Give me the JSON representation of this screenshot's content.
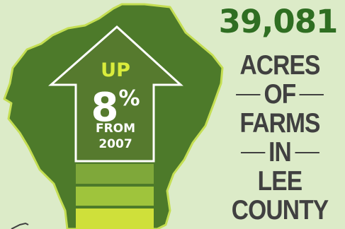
{
  "colors": {
    "background": "#dcebc8",
    "county_fill": "#4d7a2a",
    "county_outline": "#c4de52",
    "arrow_fill": "#567a2e",
    "bar_top": "#7fa83a",
    "bar_middle": "#9fc43c",
    "bar_bottom": "#cfe03a",
    "headline_green": "#2f6e22",
    "text_dark": "#404040",
    "accent_yellow": "#d9ec3c"
  },
  "badge": {
    "direction": "UP",
    "percent": "8",
    "percent_symbol": "%",
    "from_text": "FROM",
    "year": "2007"
  },
  "headline": {
    "number": "39,081",
    "lines": [
      {
        "text": "ACRES",
        "ruled": false
      },
      {
        "text": "OF",
        "ruled": true
      },
      {
        "text": "FARMS",
        "ruled": false
      },
      {
        "text": "IN",
        "ruled": true
      },
      {
        "text": "LEE",
        "ruled": false
      },
      {
        "text": "COUNTY",
        "ruled": false
      }
    ]
  }
}
